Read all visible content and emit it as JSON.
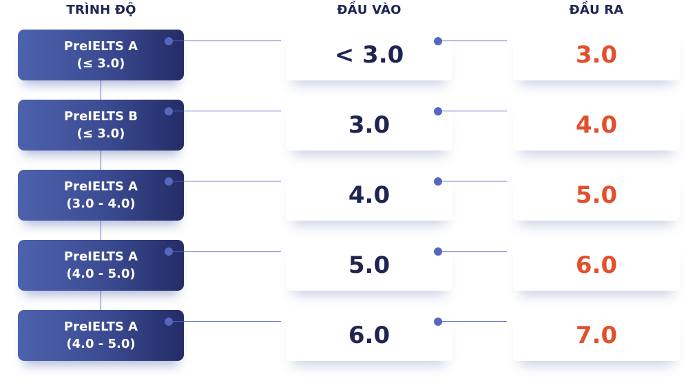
{
  "headers": {
    "level": "TRÌNH ĐỘ",
    "input": "ĐẦU VÀO",
    "output": "ĐẦU RA"
  },
  "colors": {
    "level_box_start": "#4d62ad",
    "level_box_end": "#232c66",
    "input_text": "#1f2552",
    "output_text": "#e2502b",
    "connector": "#5567bf"
  },
  "rows": [
    {
      "level_name": "PreIELTS A",
      "level_range": "(≤ 3.0)",
      "input": "< 3.0",
      "output": "3.0"
    },
    {
      "level_name": "PreIELTS B",
      "level_range": "(≤ 3.0)",
      "input": "3.0",
      "output": "4.0"
    },
    {
      "level_name": "PreIELTS A",
      "level_range": "(3.0 - 4.0)",
      "input": "4.0",
      "output": "5.0"
    },
    {
      "level_name": "PreIELTS A",
      "level_range": "(4.0 - 5.0)",
      "input": "5.0",
      "output": "6.0"
    },
    {
      "level_name": "PreIELTS A",
      "level_range": "(4.0 - 5.0)",
      "input": "6.0",
      "output": "7.0"
    }
  ]
}
